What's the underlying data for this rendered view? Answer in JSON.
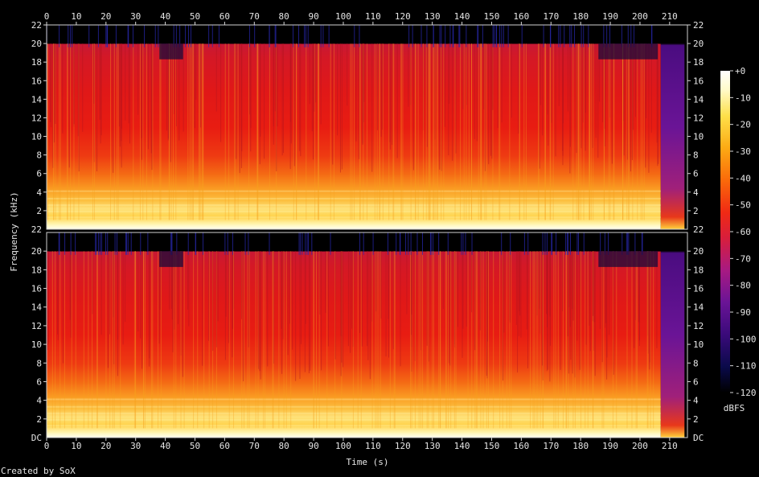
{
  "chart_data": {
    "type": "heatmap",
    "xlabel": "Time (s)",
    "ylabel": "Frequency (kHz)",
    "x_ticks": [
      0,
      10,
      20,
      30,
      40,
      50,
      60,
      70,
      80,
      90,
      100,
      110,
      120,
      130,
      140,
      150,
      160,
      170,
      180,
      190,
      200,
      210
    ],
    "xlim": [
      0,
      216
    ],
    "channels": [
      {
        "y_ticks": [
          2,
          4,
          6,
          8,
          10,
          12,
          14,
          16,
          18,
          20,
          22
        ],
        "bottom_label": "22"
      },
      {
        "y_ticks": [
          2,
          4,
          6,
          8,
          10,
          12,
          14,
          16,
          18,
          20
        ],
        "bottom_label": "DC"
      }
    ],
    "ylim": [
      0,
      22
    ],
    "duration_s": 216,
    "content_cutoff_khz": 20,
    "fadeout_start_s": 207,
    "colorbar": {
      "unit": "dBFS",
      "ticks": [
        "+0",
        "-10",
        "-20",
        "-30",
        "-40",
        "-50",
        "-60",
        "-70",
        "-80",
        "-90",
        "-100",
        "-110",
        "-120"
      ],
      "range": [
        -120,
        0
      ],
      "colors": [
        "#000000",
        "#0a0a4a",
        "#3a0a7a",
        "#6a1496",
        "#a81a82",
        "#d81e3c",
        "#f02a14",
        "#fa6a0a",
        "#fcaa14",
        "#fee04a",
        "#fffac8",
        "#ffffff"
      ]
    },
    "footer": "Created by SoX"
  }
}
